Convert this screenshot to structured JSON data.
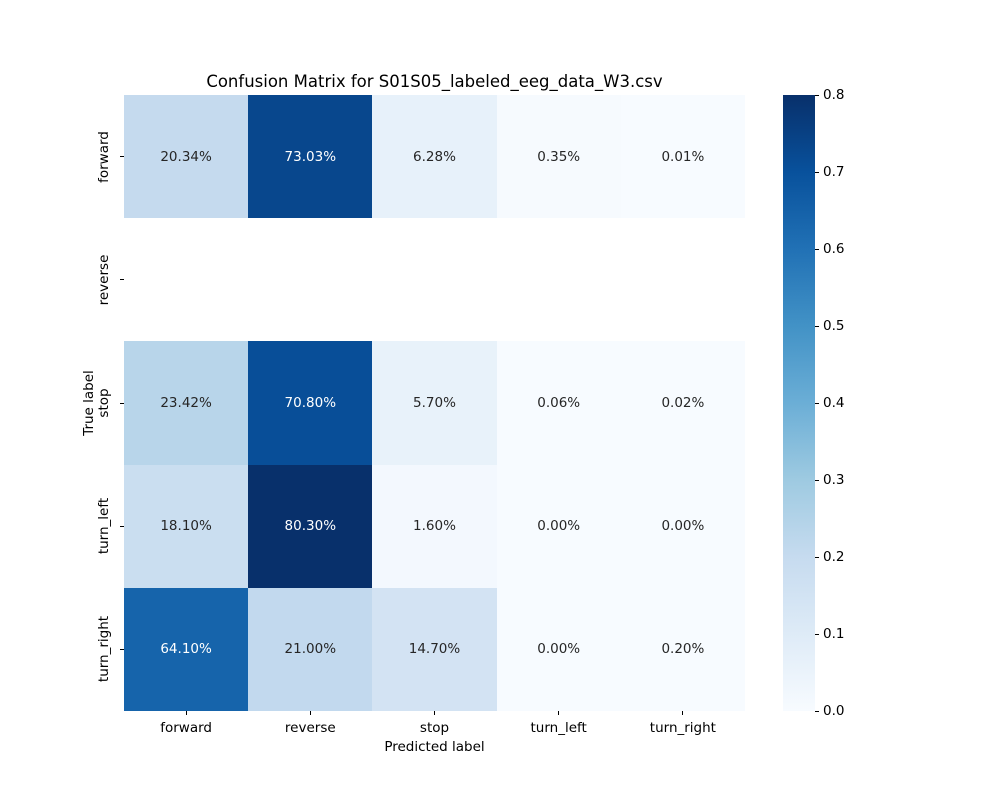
{
  "chart_data": {
    "type": "heatmap",
    "title": "Confusion Matrix for S01S05_labeled_eeg_data_W3.csv",
    "xlabel": "Predicted label",
    "ylabel": "True label",
    "x_categories": [
      "forward",
      "reverse",
      "stop",
      "turn_left",
      "turn_right"
    ],
    "y_categories": [
      "forward",
      "reverse",
      "stop",
      "turn_left",
      "turn_right"
    ],
    "unit": "percent",
    "colormap": "Blues",
    "vmin": 0.0,
    "vmax": 0.8,
    "missing_rows": [
      "reverse"
    ],
    "rows": [
      {
        "label": "forward",
        "cells": [
          {
            "text": "20.34%",
            "value": 0.2034,
            "bg": "#c5daee",
            "fg": "dark"
          },
          {
            "text": "73.03%",
            "value": 0.7303,
            "bg": "#08478d",
            "fg": "light"
          },
          {
            "text": "6.28%",
            "value": 0.0628,
            "bg": "#e7f1fa",
            "fg": "dark"
          },
          {
            "text": "0.35%",
            "value": 0.0035,
            "bg": "#f6fafe",
            "fg": "dark"
          },
          {
            "text": "0.01%",
            "value": 0.0001,
            "bg": "#f7fbff",
            "fg": "dark"
          }
        ]
      },
      {
        "label": "reverse",
        "cells": [
          null,
          null,
          null,
          null,
          null
        ]
      },
      {
        "label": "stop",
        "cells": [
          {
            "text": "23.42%",
            "value": 0.2342,
            "bg": "#b8d5ea",
            "fg": "dark"
          },
          {
            "text": "70.80%",
            "value": 0.708,
            "bg": "#084e98",
            "fg": "light"
          },
          {
            "text": "5.70%",
            "value": 0.057,
            "bg": "#e8f2fa",
            "fg": "dark"
          },
          {
            "text": "0.06%",
            "value": 0.0006,
            "bg": "#f7fbff",
            "fg": "dark"
          },
          {
            "text": "0.02%",
            "value": 0.0002,
            "bg": "#f7fbff",
            "fg": "dark"
          }
        ]
      },
      {
        "label": "turn_left",
        "cells": [
          {
            "text": "18.10%",
            "value": 0.181,
            "bg": "#cadef0",
            "fg": "dark"
          },
          {
            "text": "80.30%",
            "value": 0.803,
            "bg": "#08306b",
            "fg": "light"
          },
          {
            "text": "1.60%",
            "value": 0.016,
            "bg": "#f3f8fe",
            "fg": "dark"
          },
          {
            "text": "0.00%",
            "value": 0.0,
            "bg": "#f7fbff",
            "fg": "dark"
          },
          {
            "text": "0.00%",
            "value": 0.0,
            "bg": "#f7fbff",
            "fg": "dark"
          }
        ]
      },
      {
        "label": "turn_right",
        "cells": [
          {
            "text": "64.10%",
            "value": 0.641,
            "bg": "#1664ab",
            "fg": "light"
          },
          {
            "text": "21.00%",
            "value": 0.21,
            "bg": "#c2d9ee",
            "fg": "dark"
          },
          {
            "text": "14.70%",
            "value": 0.147,
            "bg": "#d3e3f3",
            "fg": "dark"
          },
          {
            "text": "0.00%",
            "value": 0.0,
            "bg": "#f7fbff",
            "fg": "dark"
          },
          {
            "text": "0.20%",
            "value": 0.002,
            "bg": "#f7fbff",
            "fg": "dark"
          }
        ]
      }
    ],
    "colorbar": {
      "ticks_top_to_bottom": [
        "0.8",
        "0.7",
        "0.6",
        "0.5",
        "0.4",
        "0.3",
        "0.2",
        "0.1",
        "0.0"
      ],
      "gradient_bottom_to_top": [
        "#f7fbff",
        "#deebf7",
        "#c6dbef",
        "#9ecae1",
        "#6baed6",
        "#4292c6",
        "#2171b5",
        "#08519c",
        "#08306b"
      ]
    },
    "colors": {
      "annotation_dark": "#262626",
      "annotation_light": "#ffffff",
      "axis_text": "#000000",
      "background": "#ffffff",
      "cell_missing": "#ffffff"
    }
  }
}
